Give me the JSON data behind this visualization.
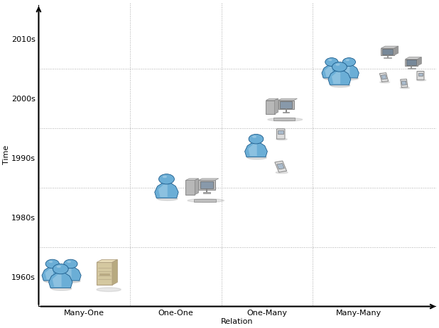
{
  "xlabel": "Relation",
  "ylabel": "Time",
  "x_ticks": [
    1,
    2,
    3,
    4
  ],
  "x_labels": [
    "Many-One",
    "One-One",
    "One-Many",
    "Many-Many"
  ],
  "y_ticks": [
    1,
    2,
    3,
    4,
    5
  ],
  "y_labels": [
    "1960s",
    "1980s",
    "1990s",
    "2000s",
    "2010s"
  ],
  "bg_color": "#ffffff",
  "grid_color": "#888888",
  "human_color_light": "#aed4ea",
  "human_color_mid": "#6baed6",
  "human_color_dark": "#2878b0",
  "human_outline": "#1a5a8a",
  "mainframe_color": "#d4c8a0",
  "mainframe_edge": "#b0a080",
  "pc_color": "#cccccc",
  "pc_edge": "#888888",
  "pda_color": "#dddddd",
  "pda_edge": "#888888"
}
